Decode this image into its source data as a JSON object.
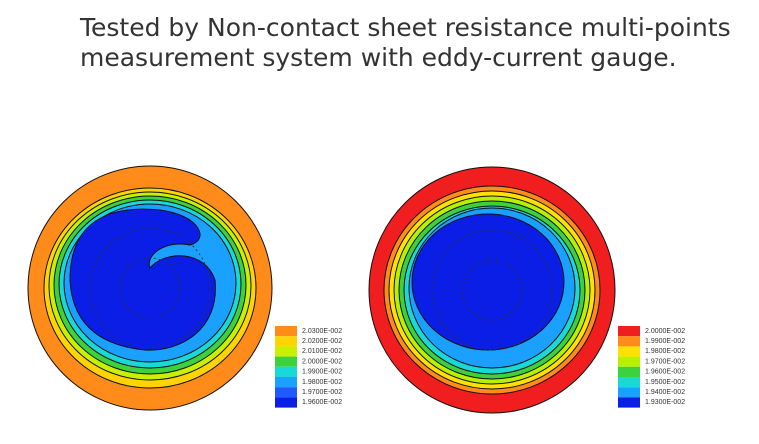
{
  "header": {
    "lines": [
      "Tested by Non-contact sheet resistance multi-points",
      "measurement system with eddy-current gauge."
    ]
  },
  "maps": [
    {
      "legend": [
        {
          "label": "2.0300E-002",
          "color": "#ff8c1a"
        },
        {
          "label": "2.0200E-002",
          "color": "#ffd400"
        },
        {
          "label": "2.0100E-002",
          "color": "#c8f000"
        },
        {
          "label": "2.0000E-002",
          "color": "#3ed13e"
        },
        {
          "label": "1.9900E-002",
          "color": "#18d8d8"
        },
        {
          "label": "1.9800E-002",
          "color": "#1aa0ff"
        },
        {
          "label": "1.9700E-002",
          "color": "#1e5aff"
        },
        {
          "label": "1.9600E-002",
          "color": "#0a1ee6"
        }
      ]
    },
    {
      "legend": [
        {
          "label": "2.0000E-002",
          "color": "#f01e1e"
        },
        {
          "label": "1.9900E-002",
          "color": "#ff8c1a"
        },
        {
          "label": "1.9800E-002",
          "color": "#ffe000"
        },
        {
          "label": "1.9700E-002",
          "color": "#b8f000"
        },
        {
          "label": "1.9600E-002",
          "color": "#3ed13e"
        },
        {
          "label": "1.9500E-002",
          "color": "#18d8d8"
        },
        {
          "label": "1.9400E-002",
          "color": "#1aa0ff"
        },
        {
          "label": "1.9300E-002",
          "color": "#0a1ee6"
        }
      ]
    }
  ]
}
